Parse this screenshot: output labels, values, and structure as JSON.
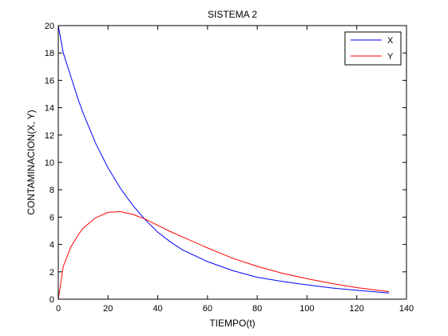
{
  "chart_data": {
    "type": "line",
    "title": "SISTEMA 2",
    "xlabel": "TIEMPO(t)",
    "ylabel": "CONTAMINACION(X, Y)",
    "xlim": [
      0,
      140
    ],
    "ylim": [
      0,
      20
    ],
    "xticks": [
      "0",
      "20",
      "40",
      "60",
      "80",
      "100",
      "120",
      "140"
    ],
    "yticks": [
      "0",
      "2",
      "4",
      "6",
      "8",
      "10",
      "12",
      "14",
      "16",
      "18",
      "20"
    ],
    "grid": false,
    "legend_position": "top-right",
    "series": [
      {
        "name": "X",
        "color": "#0000ff",
        "x": [
          0,
          2,
          5,
          8,
          10,
          15,
          20,
          25,
          30,
          35,
          40,
          45,
          50,
          60,
          70,
          75,
          80,
          90,
          100,
          110,
          120,
          133
        ],
        "values": [
          20.0,
          18.0,
          16.3,
          14.6,
          13.6,
          11.4,
          9.6,
          8.1,
          6.85,
          5.8,
          4.9,
          4.2,
          3.6,
          2.75,
          2.1,
          1.85,
          1.6,
          1.3,
          1.05,
          0.82,
          0.65,
          0.45
        ]
      },
      {
        "name": "Y",
        "color": "#ff0000",
        "x": [
          0,
          2,
          5,
          8,
          10,
          15,
          20,
          25,
          30,
          35,
          40,
          45,
          50,
          60,
          70,
          80,
          90,
          100,
          110,
          120,
          133
        ],
        "values": [
          0.0,
          2.4,
          3.8,
          4.7,
          5.2,
          5.95,
          6.35,
          6.4,
          6.2,
          5.85,
          5.4,
          4.95,
          4.55,
          3.75,
          3.0,
          2.4,
          1.9,
          1.5,
          1.15,
          0.85,
          0.55
        ]
      }
    ]
  }
}
